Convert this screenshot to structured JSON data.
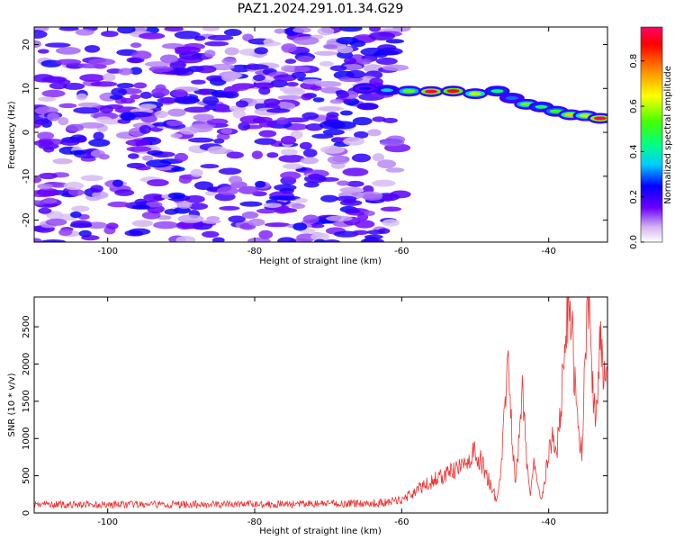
{
  "title": "PAZ1.2024.291.01.34.G29",
  "chart_data": [
    {
      "type": "heatmap",
      "panel": "top",
      "xlabel": "Height of straight line (km)",
      "ylabel": "Frequency (Hz)",
      "xlim": [
        -110,
        -32
      ],
      "ylim": [
        -25,
        24
      ],
      "xticks": [
        -100,
        -80,
        -60,
        -40
      ],
      "yticks": [
        20,
        10,
        0,
        -10,
        -20
      ],
      "colorbar": {
        "label": "Normalized spectral amplitude",
        "range": [
          0,
          0.95
        ],
        "ticks": [
          0.0,
          0.2,
          0.4,
          0.6,
          0.8
        ]
      },
      "ridge": [
        {
          "x": -65,
          "y": 10.0,
          "amp": 0.25
        },
        {
          "x": -62,
          "y": 9.6,
          "amp": 0.35
        },
        {
          "x": -59,
          "y": 9.4,
          "amp": 0.55
        },
        {
          "x": -56,
          "y": 9.3,
          "amp": 0.92
        },
        {
          "x": -53,
          "y": 9.4,
          "amp": 0.9
        },
        {
          "x": -50,
          "y": 8.8,
          "amp": 0.6
        },
        {
          "x": -47,
          "y": 9.4,
          "amp": 0.45
        },
        {
          "x": -45,
          "y": 7.8,
          "amp": 0.3
        },
        {
          "x": -43,
          "y": 6.4,
          "amp": 0.55
        },
        {
          "x": -41,
          "y": 5.8,
          "amp": 0.45
        },
        {
          "x": -39,
          "y": 4.8,
          "amp": 0.5
        },
        {
          "x": -37,
          "y": 4.0,
          "amp": 0.7
        },
        {
          "x": -35,
          "y": 3.8,
          "amp": 0.6
        },
        {
          "x": -33,
          "y": 3.2,
          "amp": 0.95
        }
      ],
      "noise_region": {
        "x_start": -110,
        "x_end": -60,
        "amp_range": [
          0.05,
          0.25
        ]
      }
    },
    {
      "type": "line",
      "panel": "bottom",
      "color": "#ee3333",
      "xlabel": "Height of straight line (km)",
      "ylabel": "SNR (10 * v/v)",
      "xlim": [
        -110,
        -32
      ],
      "ylim": [
        0,
        2900
      ],
      "xticks": [
        -100,
        -80,
        -60,
        -40
      ],
      "yticks": [
        0,
        500,
        1000,
        1500,
        2000,
        2500
      ],
      "series": [
        {
          "x": [
            -110,
            -105,
            -100,
            -95,
            -90,
            -85,
            -80,
            -75,
            -70,
            -65,
            -62,
            -60,
            -58,
            -56,
            -54,
            -52,
            -50,
            -49,
            -48,
            -47,
            -46.5,
            -46,
            -45.5,
            -45,
            -44.5,
            -44,
            -43.5,
            -43,
            -42.5,
            -42,
            -41.5,
            -41,
            -40.5,
            -40,
            -39.5,
            -39,
            -38.5,
            -38,
            -37.5,
            -37,
            -36.5,
            -36,
            -35.5,
            -35,
            -34.5,
            -34,
            -33.5,
            -33,
            -32.5,
            -32
          ],
          "y": [
            120,
            110,
            115,
            110,
            115,
            115,
            120,
            120,
            125,
            130,
            140,
            180,
            300,
            420,
            520,
            600,
            820,
            650,
            400,
            150,
            600,
            1300,
            2100,
            1100,
            400,
            1000,
            1700,
            700,
            200,
            800,
            400,
            200,
            500,
            800,
            1000,
            700,
            1300,
            1900,
            2700,
            2800,
            1800,
            1200,
            800,
            2300,
            2700,
            1600,
            1300,
            2600,
            1700,
            1800
          ]
        }
      ]
    }
  ]
}
